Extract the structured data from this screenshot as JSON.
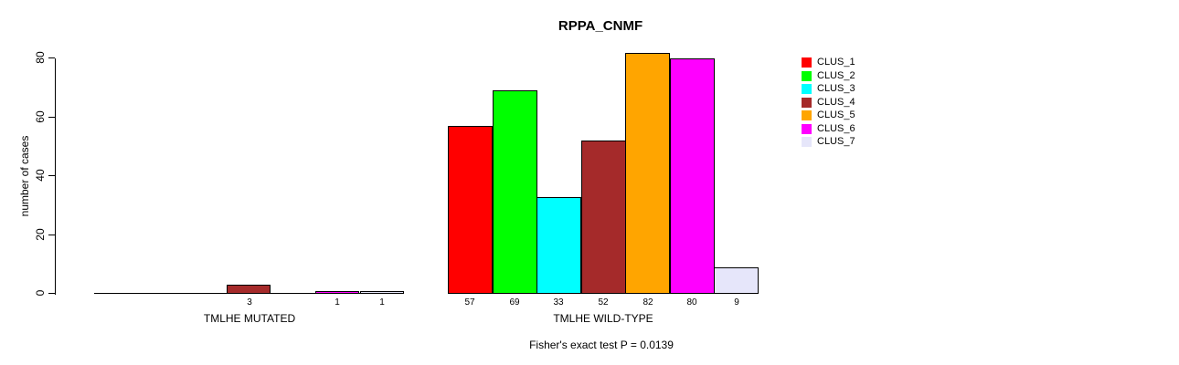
{
  "chart_data": {
    "type": "bar",
    "title": "RPPA_CNMF",
    "ylabel": "number of cases",
    "xlabel": "",
    "ylim": [
      0,
      80
    ],
    "yticks": [
      "0",
      "20",
      "40",
      "60",
      "80"
    ],
    "grid": false,
    "legend_position": "right",
    "categories": [
      "TMLHE MUTATED",
      "TMLHE WILD-TYPE"
    ],
    "groups": [
      {
        "label": "TMLHE MUTATED",
        "values": [
          0,
          0,
          0,
          3,
          0,
          1,
          1
        ],
        "bar_labels": [
          "",
          "",
          "",
          "3",
          "",
          "1",
          "1"
        ]
      },
      {
        "label": "TMLHE WILD-TYPE",
        "values": [
          57,
          69,
          33,
          52,
          82,
          80,
          9
        ],
        "bar_labels": [
          "57",
          "69",
          "33",
          "52",
          "82",
          "80",
          "9"
        ]
      }
    ],
    "series": [
      {
        "name": "CLUS_1",
        "color": "#ff0000",
        "values": [
          0,
          57
        ]
      },
      {
        "name": "CLUS_2",
        "color": "#00ff00",
        "values": [
          0,
          69
        ]
      },
      {
        "name": "CLUS_3",
        "color": "#00ffff",
        "values": [
          0,
          33
        ]
      },
      {
        "name": "CLUS_4",
        "color": "#a52a2a",
        "values": [
          3,
          52
        ]
      },
      {
        "name": "CLUS_5",
        "color": "#ffa500",
        "values": [
          0,
          82
        ]
      },
      {
        "name": "CLUS_6",
        "color": "#ff00ff",
        "values": [
          1,
          80
        ]
      },
      {
        "name": "CLUS_7",
        "color": "#e6e6fa",
        "values": [
          1,
          9
        ]
      }
    ],
    "legend": [
      {
        "label": "CLUS_1",
        "color": "#ff0000"
      },
      {
        "label": "CLUS_2",
        "color": "#00ff00"
      },
      {
        "label": "CLUS_3",
        "color": "#00ffff"
      },
      {
        "label": "CLUS_4",
        "color": "#a52a2a"
      },
      {
        "label": "CLUS_5",
        "color": "#ffa500"
      },
      {
        "label": "CLUS_6",
        "color": "#ff00ff"
      },
      {
        "label": "CLUS_7",
        "color": "#e6e6fa"
      }
    ],
    "annotation": "Fisher's exact test P = 0.0139",
    "axis_color": "#000000",
    "bar_border_color": "#000000"
  }
}
